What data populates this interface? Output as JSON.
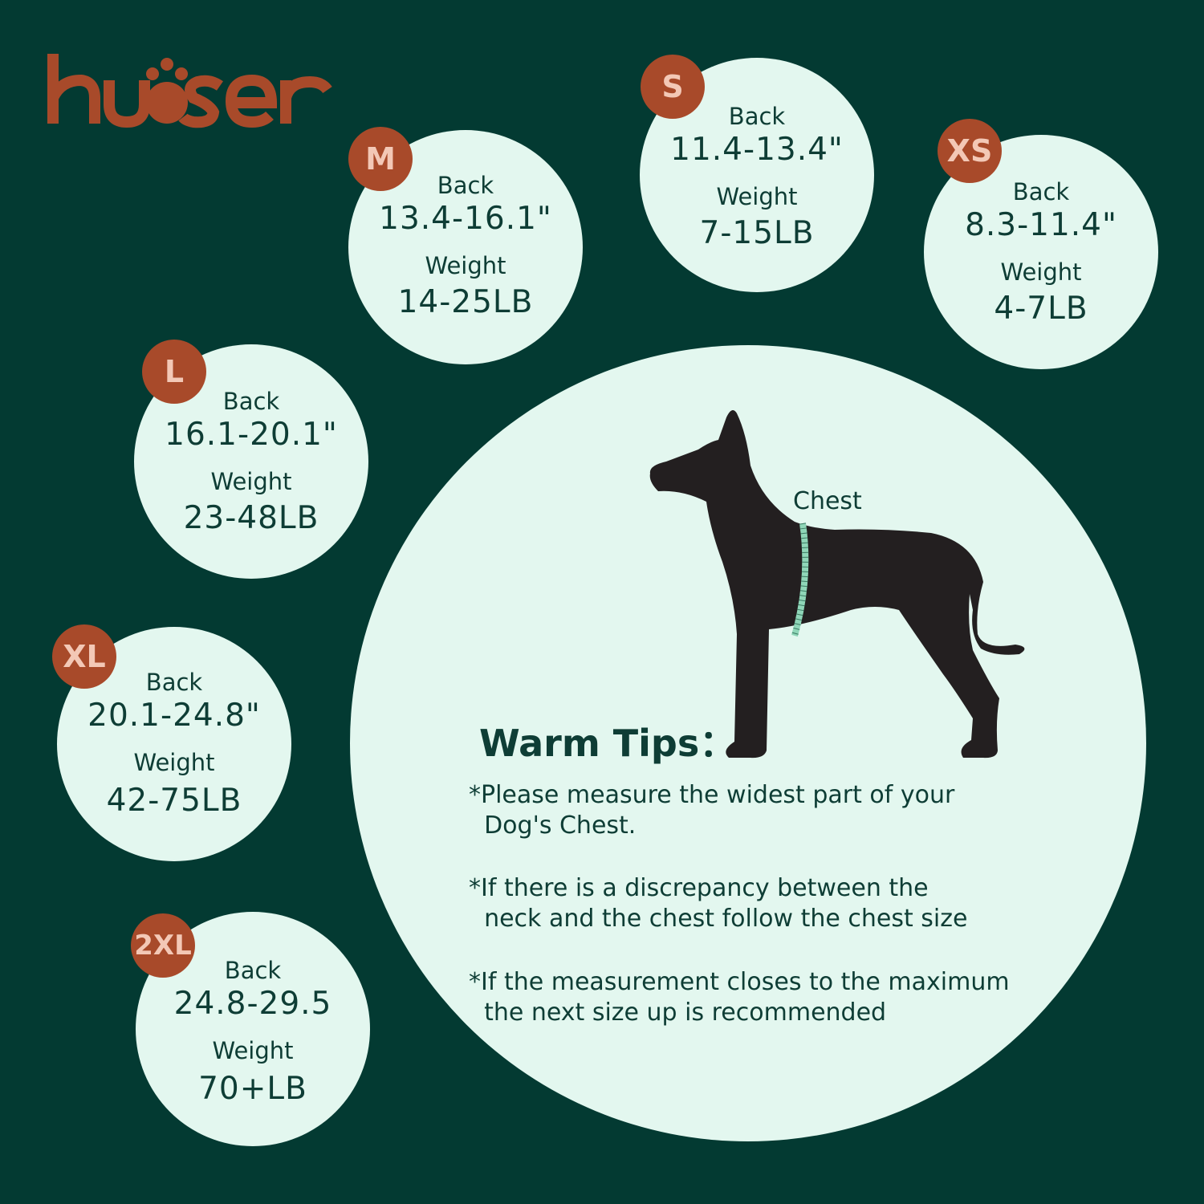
{
  "brand": {
    "logo_text": "kuoser",
    "color": "#a84a2a"
  },
  "colors": {
    "background": "#033a32",
    "circle": "#e3f7ef",
    "badge": "#a84a2a",
    "text": "#0e3d35"
  },
  "sizes": [
    {
      "size": "M",
      "back_label": "Back",
      "back": "13.4-16.1\"",
      "weight_label": "Weight",
      "weight": "14-25LB"
    },
    {
      "size": "S",
      "back_label": "Back",
      "back": "11.4-13.4\"",
      "weight_label": "Weight",
      "weight": "7-15LB"
    },
    {
      "size": "XS",
      "back_label": "Back",
      "back": "8.3-11.4\"",
      "weight_label": "Weight",
      "weight": "4-7LB"
    },
    {
      "size": "L",
      "back_label": "Back",
      "back": "16.1-20.1\"",
      "weight_label": "Weight",
      "weight": "23-48LB"
    },
    {
      "size": "XL",
      "back_label": "Back",
      "back": "20.1-24.8\"",
      "weight_label": "Weight",
      "weight": "42-75LB"
    },
    {
      "size": "2XL",
      "back_label": "Back",
      "back": "24.8-29.5",
      "weight_label": "Weight",
      "weight": "70+LB"
    }
  ],
  "diagram": {
    "chest_label": "Chest",
    "icon": "dog-silhouette-with-measuring-tape"
  },
  "tips": {
    "title": "Warm Tips：",
    "items": [
      "*Please measure the widest part of your\n  Dog's Chest.",
      "*If there is a discrepancy between the\n  neck and the chest follow the chest size",
      "*If the measurement closes to the maximum\n  the next size up is recommended"
    ]
  }
}
